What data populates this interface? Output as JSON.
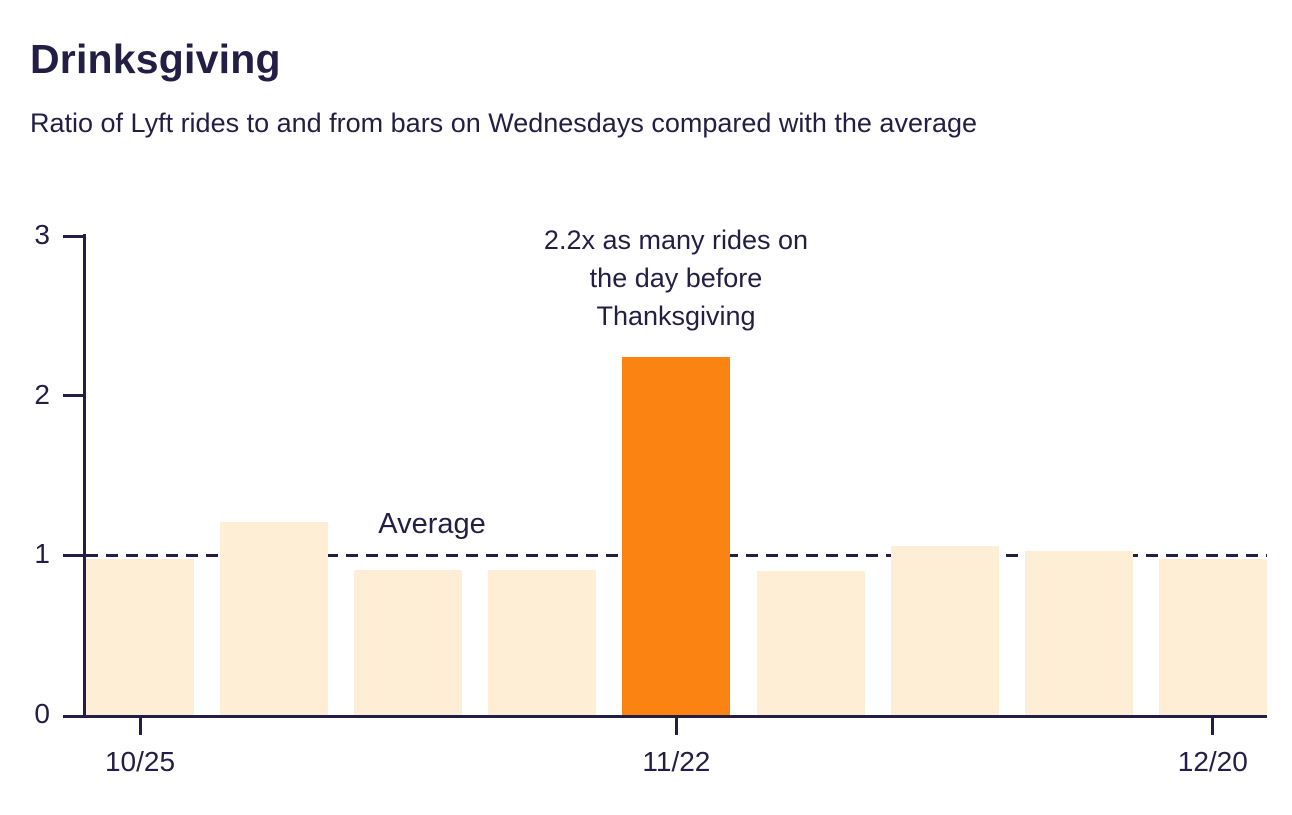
{
  "page": {
    "title": "Drinksgiving",
    "subtitle": "Ratio of Lyft rides to and from bars on Wednesdays compared with the average"
  },
  "chart_data": {
    "type": "bar",
    "title": "Drinksgiving",
    "subtitle": "Ratio of Lyft rides to and from bars on Wednesdays compared with the average",
    "values": [
      0.98,
      1.21,
      0.91,
      0.91,
      2.24,
      0.9,
      1.06,
      1.03,
      0.98
    ],
    "highlight_index": 4,
    "x_tick_labels": [
      {
        "index": 0,
        "label": "10/25"
      },
      {
        "index": 4,
        "label": "11/22"
      },
      {
        "index": 8,
        "label": "12/20"
      }
    ],
    "y_ticks": [
      0,
      1,
      2,
      3
    ],
    "ylim": [
      0,
      3
    ],
    "grid": false,
    "reference_line": {
      "value": 1,
      "label": "Average",
      "style": "dashed"
    },
    "annotation": {
      "lines": [
        "2.2x as many rides on",
        "the day before",
        "Thanksgiving"
      ],
      "target_index": 4
    },
    "colors": {
      "bar_default": "#FDEED5",
      "bar_highlight": "#FB8312",
      "text": "#221E44",
      "axis": "#221E44"
    }
  }
}
